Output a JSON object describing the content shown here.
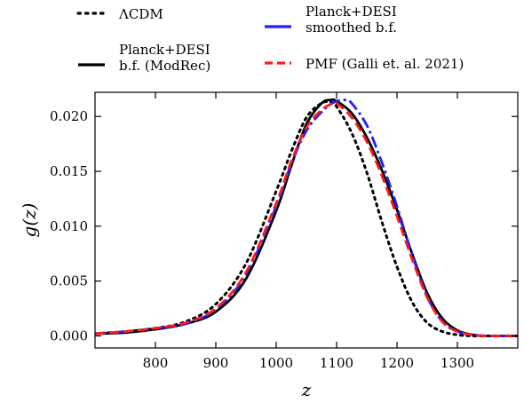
{
  "chart_data": {
    "type": "line",
    "xlabel": "z",
    "ylabel": "g(z)",
    "xlim": [
      700,
      1400
    ],
    "ylim": [
      -0.0011,
      0.0222
    ],
    "xticks": [
      800,
      900,
      1000,
      1100,
      1200,
      1300
    ],
    "xtick_labels": [
      "800",
      "900",
      "1000",
      "1100",
      "1200",
      "1300"
    ],
    "yticks": [
      0.0,
      0.005,
      0.01,
      0.015,
      0.02
    ],
    "ytick_labels": [
      "0.000",
      "0.005",
      "0.010",
      "0.015",
      "0.020"
    ],
    "grid": false,
    "legend_position": "top",
    "series": [
      {
        "name": "ΛCDM",
        "color": "#000000",
        "dash": "dotted",
        "x": [
          700,
          750,
          800,
          850,
          900,
          950,
          1000,
          1025,
          1050,
          1075,
          1090,
          1100,
          1125,
          1150,
          1175,
          1200,
          1225,
          1250,
          1275,
          1300,
          1325,
          1350,
          1400
        ],
        "y": [
          0.0002,
          0.0004,
          0.0007,
          0.0013,
          0.0029,
          0.0066,
          0.0132,
          0.0168,
          0.0199,
          0.0212,
          0.0213,
          0.0209,
          0.0185,
          0.0149,
          0.0104,
          0.0063,
          0.0031,
          0.0012,
          0.0004,
          0.0001,
          0.0,
          0.0,
          0.0
        ]
      },
      {
        "name": "Planck+DESI b.f. (ModRec)",
        "color": "#000000",
        "dash": "solid",
        "x": [
          700,
          750,
          800,
          850,
          900,
          950,
          1000,
          1025,
          1050,
          1075,
          1090,
          1100,
          1125,
          1150,
          1175,
          1200,
          1225,
          1250,
          1275,
          1300,
          1325,
          1350,
          1400
        ],
        "y": [
          0.0002,
          0.0003,
          0.0006,
          0.0011,
          0.0022,
          0.0052,
          0.0114,
          0.0155,
          0.0193,
          0.0212,
          0.0215,
          0.0214,
          0.0203,
          0.0181,
          0.0151,
          0.0115,
          0.0075,
          0.0039,
          0.0016,
          0.0005,
          0.0001,
          0.0,
          0.0
        ]
      },
      {
        "name": "Planck+DESI smoothed b.f.",
        "color": "#1f1fff",
        "dash": "dashdot",
        "x": [
          700,
          750,
          800,
          850,
          900,
          950,
          1000,
          1025,
          1050,
          1075,
          1090,
          1100,
          1115,
          1125,
          1150,
          1175,
          1200,
          1225,
          1250,
          1275,
          1300,
          1325,
          1350,
          1400
        ],
        "y": [
          0.0002,
          0.0004,
          0.0007,
          0.0011,
          0.0024,
          0.0056,
          0.0118,
          0.0157,
          0.0187,
          0.0204,
          0.0211,
          0.0214,
          0.0215,
          0.0212,
          0.0192,
          0.0158,
          0.0118,
          0.0074,
          0.0036,
          0.0013,
          0.0004,
          0.0001,
          0.0,
          0.0
        ]
      },
      {
        "name": "PMF (Galli et. al. 2021)",
        "color": "#ff1a1a",
        "dash": "dashed",
        "x": [
          700,
          750,
          800,
          850,
          900,
          950,
          1000,
          1025,
          1050,
          1075,
          1090,
          1100,
          1125,
          1150,
          1175,
          1200,
          1225,
          1250,
          1275,
          1300,
          1325,
          1350,
          1400
        ],
        "y": [
          0.0002,
          0.0004,
          0.0007,
          0.0012,
          0.0025,
          0.0058,
          0.0121,
          0.0159,
          0.019,
          0.0206,
          0.0211,
          0.0212,
          0.0199,
          0.0177,
          0.0146,
          0.0109,
          0.007,
          0.0035,
          0.0013,
          0.0004,
          0.0001,
          0.0,
          0.0
        ]
      }
    ]
  }
}
